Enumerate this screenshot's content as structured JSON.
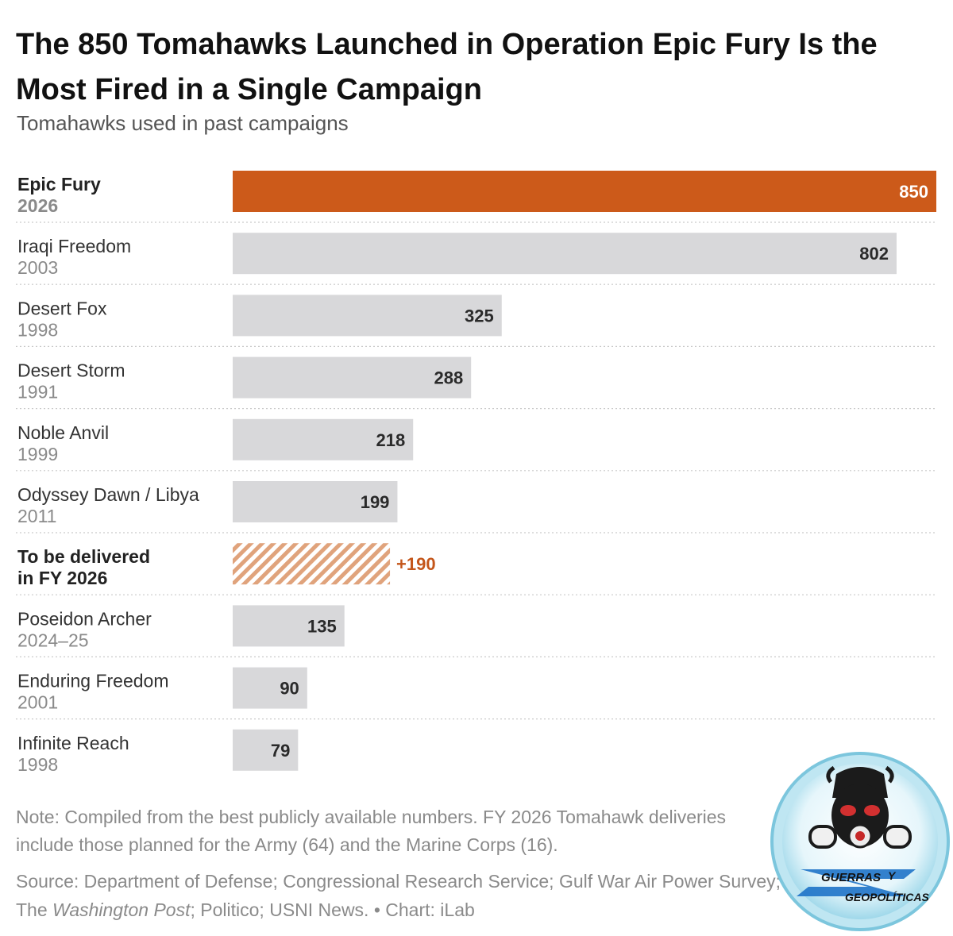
{
  "title": "The 850 Tomahawks Launched in Operation Epic Fury Is the Most Fired in a Single Campaign",
  "subtitle": "Tomahawks used in past campaigns",
  "chart_data": {
    "type": "bar",
    "orientation": "horizontal",
    "categories": [
      {
        "name": "Epic Fury",
        "year": "2026",
        "value": 850,
        "label": "850",
        "style": "highlight"
      },
      {
        "name": "Iraqi Freedom",
        "year": "2003",
        "value": 802,
        "label": "802",
        "style": "normal"
      },
      {
        "name": "Desert Fox",
        "year": "1998",
        "value": 325,
        "label": "325",
        "style": "normal"
      },
      {
        "name": "Desert Storm",
        "year": "1991",
        "value": 288,
        "label": "288",
        "style": "normal"
      },
      {
        "name": "Noble Anvil",
        "year": "1999",
        "value": 218,
        "label": "218",
        "style": "normal"
      },
      {
        "name": "Odyssey Dawn / Libya",
        "year": "2011",
        "value": 199,
        "label": "199",
        "style": "normal"
      },
      {
        "name": "To be delivered",
        "year": "in FY 2026",
        "value": 190,
        "label": "+190",
        "style": "hatched"
      },
      {
        "name": "Poseidon Archer",
        "year": "2024–25",
        "value": 135,
        "label": "135",
        "style": "normal"
      },
      {
        "name": "Enduring Freedom",
        "year": "2001",
        "value": 90,
        "label": "90",
        "style": "normal"
      },
      {
        "name": "Infinite Reach",
        "year": "1998",
        "value": 79,
        "label": "79",
        "style": "normal"
      }
    ],
    "xlim": [
      0,
      850
    ],
    "colors": {
      "highlight": "#cc5a1a",
      "normal": "#d8d8da",
      "hatch": "#e0a37c",
      "label": "#2a2a2a",
      "highlight_label": "#ffffff",
      "hatched_label": "#c4561a"
    }
  },
  "note": "Note: Compiled from the best publicly available numbers. FY 2026 Tomahawk deliveries include those planned for the Army (64) and the Marine Corps (16).",
  "source": {
    "prefix": "Source: Department of Defense; Congressional Research Service; Gulf War Air Power Survey; The ",
    "italic": "Washington Post",
    "suffix": "; Politico; USNI News.",
    "credit": " • Chart: iLab"
  },
  "watermark": {
    "line1": "GUERRAS",
    "line2": "Y",
    "line3": "GEOPOLÍTICAS"
  }
}
